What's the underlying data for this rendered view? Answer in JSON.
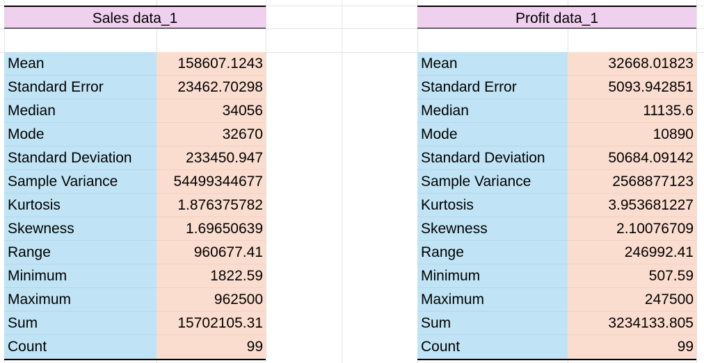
{
  "tables": [
    {
      "title": "Sales data_1",
      "rows": [
        {
          "label": "Mean",
          "value": "158607.1243"
        },
        {
          "label": "Standard Error",
          "value": "23462.70298"
        },
        {
          "label": "Median",
          "value": "34056"
        },
        {
          "label": "Mode",
          "value": "32670"
        },
        {
          "label": "Standard Deviation",
          "value": "233450.947"
        },
        {
          "label": "Sample Variance",
          "value": "54499344677"
        },
        {
          "label": "Kurtosis",
          "value": "1.876375782"
        },
        {
          "label": "Skewness",
          "value": "1.69650639"
        },
        {
          "label": "Range",
          "value": "960677.41"
        },
        {
          "label": "Minimum",
          "value": "1822.59"
        },
        {
          "label": "Maximum",
          "value": "962500"
        },
        {
          "label": "Sum",
          "value": "15702105.31"
        },
        {
          "label": "Count",
          "value": "99"
        }
      ]
    },
    {
      "title": "Profit data_1",
      "rows": [
        {
          "label": "Mean",
          "value": "32668.01823"
        },
        {
          "label": "Standard Error",
          "value": "5093.942851"
        },
        {
          "label": "Median",
          "value": "11135.6"
        },
        {
          "label": "Mode",
          "value": "10890"
        },
        {
          "label": "Standard Deviation",
          "value": "50684.09142"
        },
        {
          "label": "Sample Variance",
          "value": "2568877123"
        },
        {
          "label": "Kurtosis",
          "value": "3.953681227"
        },
        {
          "label": "Skewness",
          "value": "2.10076709"
        },
        {
          "label": "Range",
          "value": "246992.41"
        },
        {
          "label": "Minimum",
          "value": "507.59"
        },
        {
          "label": "Maximum",
          "value": "247500"
        },
        {
          "label": "Sum",
          "value": "3234133.805"
        },
        {
          "label": "Count",
          "value": "99"
        }
      ]
    }
  ],
  "colors": {
    "header_bg": "#f0d0ef",
    "label_bg": "#c0e4f5",
    "value_bg": "#fbddd0",
    "gridline": "#e3e3e3"
  }
}
